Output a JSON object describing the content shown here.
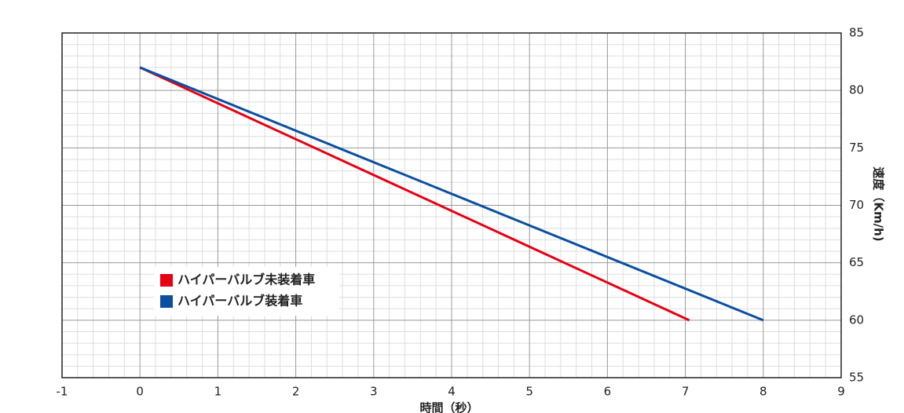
{
  "chart_data": {
    "type": "line",
    "x_label": "時間（秒）",
    "y_label": "速度（Km/h)",
    "xlim": [
      -1,
      9
    ],
    "xticks": [
      -1,
      0,
      1,
      2,
      3,
      4,
      5,
      6,
      7,
      8,
      9
    ],
    "ylim": [
      55,
      85
    ],
    "yticks": [
      55,
      60,
      65,
      70,
      75,
      80,
      85
    ],
    "grid": true,
    "minor_divisions": 5,
    "legend": "lower-left",
    "series": [
      {
        "name": "ハイパーバルブ未装着車",
        "color": "#e60012",
        "x": [
          0,
          7.05
        ],
        "values": [
          82,
          60
        ]
      },
      {
        "name": "ハイパーバルブ装着車",
        "color": "#0a4fa0",
        "x": [
          0,
          8
        ],
        "values": [
          82,
          60
        ]
      }
    ]
  }
}
